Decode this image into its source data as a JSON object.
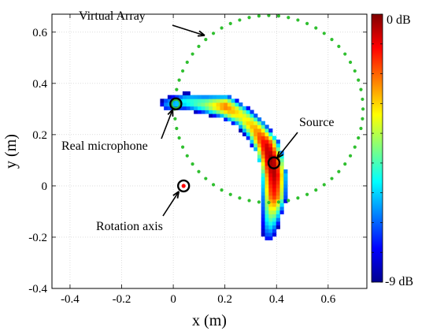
{
  "chart_data": {
    "type": "heatmap",
    "xlabel": "x (m)",
    "ylabel": "y (m)",
    "xlim": [
      -0.47,
      0.75
    ],
    "ylim": [
      -0.4,
      0.67
    ],
    "x_ticks": [
      -0.4,
      -0.2,
      0,
      0.2,
      0.4,
      0.6
    ],
    "x_tick_labels": [
      "-0.4",
      "-0.2",
      "0",
      "0.2",
      "0.4",
      "0.6"
    ],
    "y_ticks": [
      -0.4,
      -0.2,
      0,
      0.2,
      0.4,
      0.6
    ],
    "y_tick_labels": [
      "-0.4",
      "-0.2",
      "0",
      "0.2",
      "0.4",
      "0.6"
    ],
    "grid": true,
    "colorbar": {
      "min_label": "-9 dB",
      "max_label": "0 dB",
      "min": -9,
      "max": 0,
      "colormap": "jet"
    },
    "heatmap_region": {
      "description_points": [
        {
          "x": -0.02,
          "y": 0.32,
          "value_db": -6.5
        },
        {
          "x": 0.05,
          "y": 0.33,
          "value_db": -5.5
        },
        {
          "x": 0.12,
          "y": 0.32,
          "value_db": -4.5
        },
        {
          "x": 0.2,
          "y": 0.31,
          "value_db": -2.2
        },
        {
          "x": 0.27,
          "y": 0.27,
          "value_db": -3.5
        },
        {
          "x": 0.32,
          "y": 0.22,
          "value_db": -2.5
        },
        {
          "x": 0.36,
          "y": 0.16,
          "value_db": -0.8
        },
        {
          "x": 0.38,
          "y": 0.1,
          "value_db": -0.2
        },
        {
          "x": 0.39,
          "y": 0.04,
          "value_db": -0.5
        },
        {
          "x": 0.39,
          "y": -0.04,
          "value_db": -1.5
        },
        {
          "x": 0.38,
          "y": -0.12,
          "value_db": -4.5
        },
        {
          "x": 0.37,
          "y": -0.19,
          "value_db": -7.0
        }
      ]
    },
    "virtual_array": {
      "center_x": 0.37,
      "center_y": 0.3,
      "radius": 0.365,
      "point_count": 60,
      "color": "#2fbf2f"
    },
    "real_microphone": {
      "x": 0.01,
      "y": 0.32
    },
    "source": {
      "x": 0.39,
      "y": 0.09
    },
    "rotation_axis": {
      "x": 0.04,
      "y": 0.0
    },
    "annotations": [
      {
        "id": "virtual-array",
        "text": "Virtual Array"
      },
      {
        "id": "source",
        "text": "Source"
      },
      {
        "id": "real-microphone",
        "text": "Real microphone"
      },
      {
        "id": "rotation-axis",
        "text": "Rotation axis"
      }
    ]
  }
}
